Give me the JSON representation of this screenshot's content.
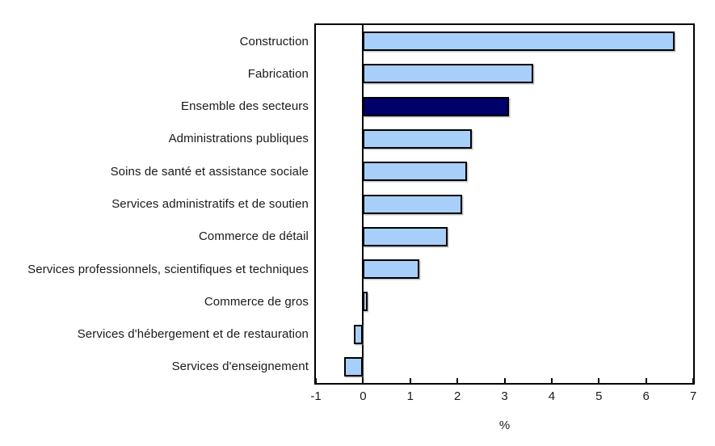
{
  "chart_data": {
    "type": "bar",
    "orientation": "horizontal",
    "categories": [
      "Construction",
      "Fabrication",
      "Ensemble des secteurs",
      "Administrations publiques",
      "Soins de santé et assistance sociale",
      "Services administratifs et de soutien",
      "Commerce de détail",
      "Services professionnels, scientifiques et techniques",
      "Commerce de gros",
      "Services d'hébergement et de restauration",
      "Services d'enseignement"
    ],
    "values": [
      6.6,
      3.6,
      3.1,
      2.3,
      2.2,
      2.1,
      1.8,
      1.2,
      0.1,
      -0.2,
      -0.4
    ],
    "highlight_index": 2,
    "xlabel": "%",
    "xlim": [
      -1,
      7
    ],
    "xticks": [
      -1,
      0,
      1,
      2,
      3,
      4,
      5,
      6,
      7
    ],
    "grid": false,
    "legend": false,
    "colors": {
      "bar_fill": "#A8CFF9",
      "bar_highlight": "#00006B",
      "bar_border": "#000000",
      "axis": "#000000",
      "background": "#FFFFFF"
    }
  }
}
